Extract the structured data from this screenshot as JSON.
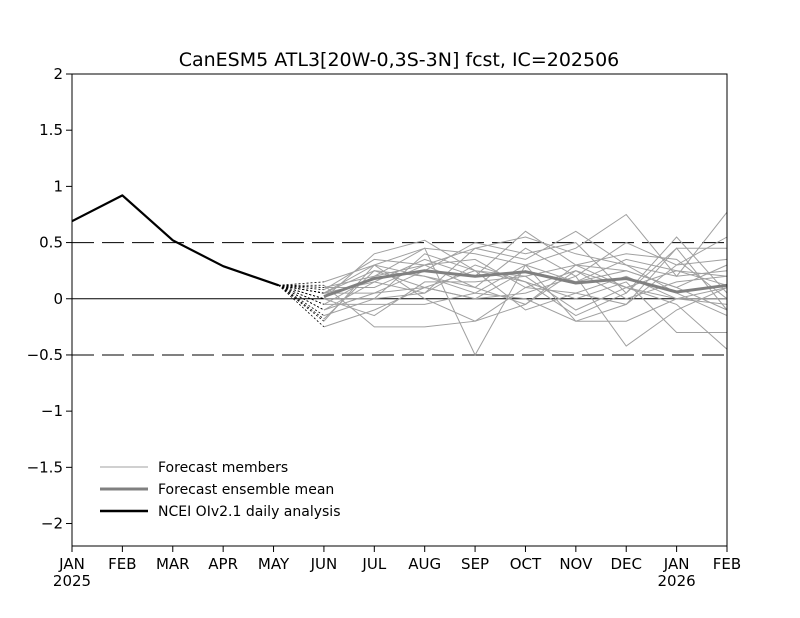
{
  "chart_data": {
    "type": "line",
    "title": "CanESM5 ATL3[20W-0,3S-3N] fcst, IC=202506",
    "xlabel": "",
    "ylabel": "",
    "ylim": [
      -2.2,
      2
    ],
    "yticks": [
      2,
      1.5,
      1,
      0.5,
      0,
      -0.5,
      -1,
      -1.5,
      -2
    ],
    "ytick_labels": [
      "2",
      "1.5",
      "1",
      "0.5",
      "0",
      "−0.5",
      "−1",
      "−1.5",
      "−2"
    ],
    "xticks": [
      {
        "label": "JAN",
        "year": "2025"
      },
      {
        "label": "FEB",
        "year": ""
      },
      {
        "label": "MAR",
        "year": ""
      },
      {
        "label": "APR",
        "year": ""
      },
      {
        "label": "MAY",
        "year": ""
      },
      {
        "label": "JUN",
        "year": ""
      },
      {
        "label": "JUL",
        "year": ""
      },
      {
        "label": "AUG",
        "year": ""
      },
      {
        "label": "SEP",
        "year": ""
      },
      {
        "label": "OCT",
        "year": ""
      },
      {
        "label": "NOV",
        "year": ""
      },
      {
        "label": "DEC",
        "year": ""
      },
      {
        "label": "JAN",
        "year": "2026"
      },
      {
        "label": "FEB",
        "year": ""
      }
    ],
    "reference_lines": [
      0.5,
      0,
      -0.5
    ],
    "legend_placement": "bottom-left",
    "series": [
      {
        "name": "NCEI OIv2.1 daily analysis",
        "color": "#000000",
        "x": [
          0,
          1,
          2,
          3,
          4.1
        ],
        "values": [
          0.69,
          0.92,
          0.52,
          0.29,
          0.12
        ]
      },
      {
        "name": "Forecast ensemble mean",
        "color": "#808080",
        "x": [
          5,
          5.5,
          6,
          7,
          8,
          9,
          10,
          11,
          12,
          13
        ],
        "values": [
          0.02,
          0.1,
          0.18,
          0.25,
          0.2,
          0.24,
          0.14,
          0.18,
          0.06,
          0.12
        ]
      }
    ],
    "members_name": "Forecast members",
    "members_color": "#a0a0a0",
    "members_x": [
      5,
      6,
      7,
      8,
      9,
      10,
      11,
      12,
      13
    ],
    "members": [
      [
        0.05,
        0.3,
        0.45,
        0.4,
        0.3,
        0.15,
        0.25,
        0.1,
        0.3
      ],
      [
        -0.05,
        0.2,
        0.3,
        0.45,
        0.55,
        0.4,
        0.3,
        0.2,
        0.25
      ],
      [
        -0.25,
        -0.1,
        0.1,
        0.25,
        -0.1,
        0.05,
        -0.05,
        0.3,
        0.55
      ],
      [
        0.0,
        0.4,
        0.52,
        0.25,
        0.2,
        0.3,
        0.1,
        0.25,
        0.12
      ],
      [
        0.12,
        -0.25,
        -0.25,
        -0.2,
        0.1,
        0.05,
        0.2,
        0.0,
        -0.05
      ],
      [
        -0.1,
        0.15,
        0.35,
        0.2,
        0.6,
        0.3,
        0.25,
        0.1,
        -0.1
      ],
      [
        0.05,
        0.05,
        0.1,
        0.0,
        0.25,
        0.15,
        0.35,
        0.25,
        0.2
      ],
      [
        0.15,
        0.3,
        0.0,
        -0.2,
        -0.05,
        0.25,
        0.1,
        -0.05,
        -0.45
      ],
      [
        -0.15,
        0.0,
        0.4,
        0.25,
        0.15,
        -0.15,
        0.05,
        0.45,
        0.45
      ],
      [
        0.05,
        0.25,
        0.1,
        0.0,
        0.05,
        0.2,
        -0.42,
        -0.1,
        0.1
      ],
      [
        0.1,
        0.2,
        0.45,
        -0.5,
        0.3,
        0.45,
        0.75,
        0.2,
        0.77
      ],
      [
        0.0,
        0.0,
        0.05,
        0.45,
        0.35,
        0.6,
        0.3,
        0.05,
        -0.15
      ],
      [
        -0.05,
        -0.05,
        -0.05,
        0.05,
        0.0,
        -0.2,
        -0.2,
        0.0,
        0.0
      ],
      [
        0.1,
        0.1,
        0.3,
        0.1,
        0.45,
        0.2,
        0.5,
        0.3,
        0.35
      ],
      [
        0.0,
        -0.15,
        0.15,
        0.15,
        0.2,
        -0.1,
        0.1,
        0.0,
        0.1
      ],
      [
        -0.1,
        0.05,
        0.25,
        0.5,
        0.4,
        0.5,
        0.05,
        0.55,
        0.05
      ],
      [
        0.05,
        0.15,
        0.05,
        0.3,
        0.15,
        0.0,
        0.15,
        -0.3,
        -0.3
      ],
      [
        -0.18,
        0.25,
        0.2,
        0.1,
        -0.05,
        0.3,
        0.4,
        0.35,
        0.0
      ],
      [
        0.08,
        0.35,
        0.3,
        0.35,
        0.1,
        0.25,
        0.0,
        0.15,
        0.2
      ],
      [
        -0.2,
        0.3,
        0.2,
        0.05,
        0.3,
        -0.2,
        -0.05,
        0.45,
        -0.1
      ]
    ]
  }
}
